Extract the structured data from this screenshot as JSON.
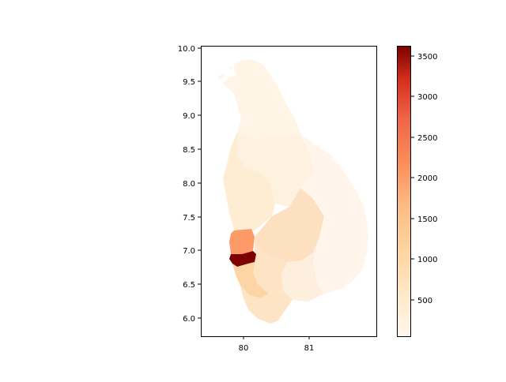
{
  "map": {
    "x_ticks": [
      "80",
      "81"
    ],
    "y_ticks": [
      "6.0",
      "6.5",
      "7.0",
      "7.5",
      "8.0",
      "8.5",
      "9.0",
      "9.5",
      "10.0"
    ]
  },
  "colorbar": {
    "colormap": "OrRd",
    "ticks": [
      "500",
      "1000",
      "1500",
      "2000",
      "2500",
      "3000",
      "3500"
    ],
    "colors": {
      "low": "#fff7ec",
      "mid_low": "#fdd49e",
      "mid": "#fc8d59",
      "mid_high": "#d7301f",
      "high": "#7f0000"
    }
  },
  "regions": [
    {
      "id": "north",
      "color": "#fff4e6"
    },
    {
      "id": "north-central",
      "color": "#fff1e0"
    },
    {
      "id": "east",
      "color": "#fff5ea"
    },
    {
      "id": "north-western",
      "color": "#feecd3"
    },
    {
      "id": "central",
      "color": "#fde0c0"
    },
    {
      "id": "uva",
      "color": "#feeedd"
    },
    {
      "id": "sabaragamuwa",
      "color": "#fee3c4"
    },
    {
      "id": "gampaha",
      "color": "#fc9b68"
    },
    {
      "id": "colombo",
      "color": "#7f0000"
    },
    {
      "id": "kalutara",
      "color": "#fdd4a3"
    },
    {
      "id": "southern",
      "color": "#fde4c4"
    }
  ]
}
